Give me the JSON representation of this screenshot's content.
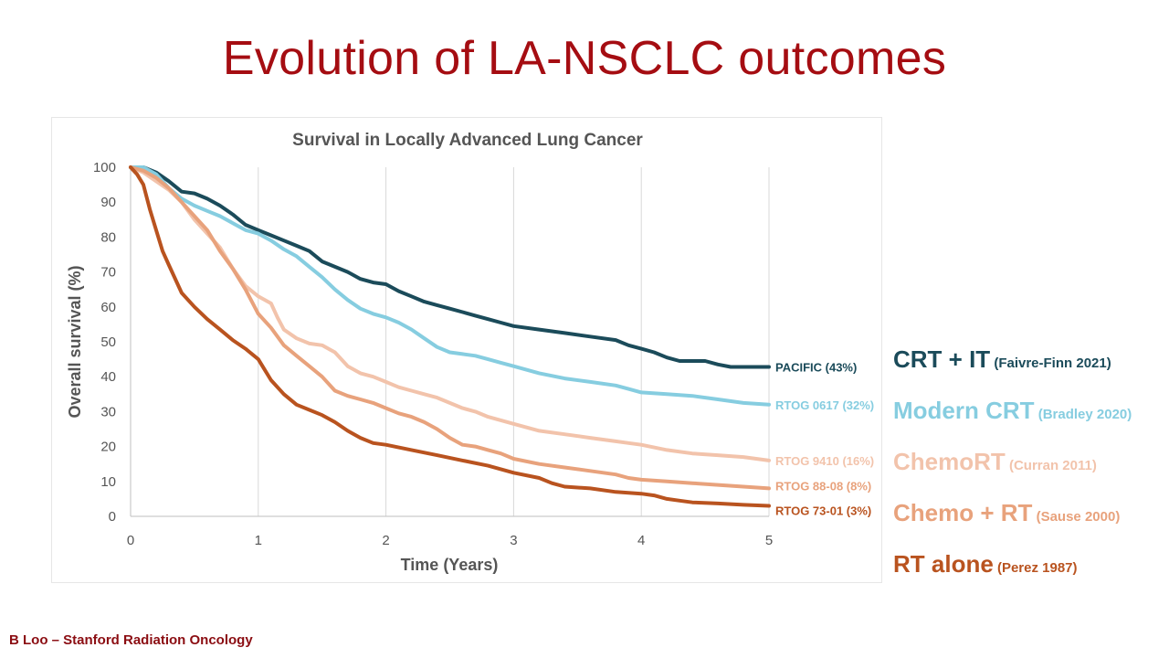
{
  "slide": {
    "title": "Evolution of LA-NSCLC outcomes",
    "footer": "B Loo – Stanford Radiation Oncology"
  },
  "legend_right": [
    {
      "label": "CRT + IT",
      "citation": "(Faivre-Finn 2021)",
      "color": "#1b4b5a"
    },
    {
      "label": "Modern CRT",
      "citation": "(Bradley 2020)",
      "color": "#86cde0"
    },
    {
      "label": "ChemoRT",
      "citation": "(Curran 2011)",
      "color": "#f2c3ab"
    },
    {
      "label": "Chemo + RT",
      "citation": "(Sause 2000)",
      "color": "#e8a27c"
    },
    {
      "label": "RT alone",
      "citation": "(Perez 1987)",
      "color": "#b9531f"
    }
  ],
  "chart_data": {
    "type": "line",
    "title": "Survival in Locally Advanced Lung Cancer",
    "xlabel": "Time (Years)",
    "ylabel": "Overall survival (%)",
    "xlim": [
      0,
      5
    ],
    "ylim": [
      0,
      100
    ],
    "xticks": [
      "0",
      "1",
      "2",
      "3",
      "4",
      "5"
    ],
    "yticks": [
      "0",
      "10",
      "20",
      "30",
      "40",
      "50",
      "60",
      "70",
      "80",
      "90",
      "100"
    ],
    "grid": "vertical",
    "series": [
      {
        "name": "PACIFIC (43%)",
        "color": "#1b4b5a",
        "points": [
          [
            0,
            100
          ],
          [
            0.1,
            100
          ],
          [
            0.2,
            98.5
          ],
          [
            0.3,
            96
          ],
          [
            0.4,
            93
          ],
          [
            0.5,
            92.5
          ],
          [
            0.6,
            91
          ],
          [
            0.7,
            89
          ],
          [
            0.8,
            86.5
          ],
          [
            0.9,
            83.5
          ],
          [
            1.0,
            82
          ],
          [
            1.1,
            80.5
          ],
          [
            1.2,
            79
          ],
          [
            1.3,
            77.5
          ],
          [
            1.4,
            76
          ],
          [
            1.5,
            73
          ],
          [
            1.6,
            71.5
          ],
          [
            1.7,
            70
          ],
          [
            1.8,
            68
          ],
          [
            1.9,
            67
          ],
          [
            2.0,
            66.5
          ],
          [
            2.1,
            64.5
          ],
          [
            2.2,
            63
          ],
          [
            2.3,
            61.5
          ],
          [
            2.4,
            60.5
          ],
          [
            2.5,
            59.5
          ],
          [
            2.6,
            58.5
          ],
          [
            2.7,
            57.5
          ],
          [
            2.8,
            56.5
          ],
          [
            2.9,
            55.5
          ],
          [
            3.0,
            54.5
          ],
          [
            3.2,
            53.5
          ],
          [
            3.4,
            52.5
          ],
          [
            3.6,
            51.5
          ],
          [
            3.8,
            50.5
          ],
          [
            3.9,
            49
          ],
          [
            4.0,
            48
          ],
          [
            4.1,
            47
          ],
          [
            4.2,
            45.5
          ],
          [
            4.3,
            44.5
          ],
          [
            4.5,
            44.5
          ],
          [
            4.6,
            43.5
          ],
          [
            4.7,
            42.8
          ],
          [
            5.0,
            42.8
          ]
        ]
      },
      {
        "name": "RTOG 0617 (32%)",
        "color": "#86cde0",
        "points": [
          [
            0,
            100
          ],
          [
            0.1,
            100
          ],
          [
            0.2,
            98
          ],
          [
            0.3,
            94
          ],
          [
            0.4,
            91
          ],
          [
            0.5,
            89
          ],
          [
            0.6,
            87.5
          ],
          [
            0.7,
            86
          ],
          [
            0.8,
            84
          ],
          [
            0.9,
            82
          ],
          [
            1.0,
            81
          ],
          [
            1.1,
            79
          ],
          [
            1.2,
            76.5
          ],
          [
            1.3,
            74.5
          ],
          [
            1.4,
            71.5
          ],
          [
            1.5,
            68.5
          ],
          [
            1.6,
            65
          ],
          [
            1.7,
            62
          ],
          [
            1.8,
            59.5
          ],
          [
            1.9,
            58
          ],
          [
            2.0,
            57
          ],
          [
            2.1,
            55.5
          ],
          [
            2.2,
            53.5
          ],
          [
            2.3,
            51
          ],
          [
            2.4,
            48.5
          ],
          [
            2.5,
            47
          ],
          [
            2.6,
            46.5
          ],
          [
            2.7,
            46
          ],
          [
            2.8,
            45
          ],
          [
            2.9,
            44
          ],
          [
            3.0,
            43
          ],
          [
            3.2,
            41
          ],
          [
            3.4,
            39.5
          ],
          [
            3.6,
            38.5
          ],
          [
            3.8,
            37.5
          ],
          [
            3.9,
            36.5
          ],
          [
            4.0,
            35.5
          ],
          [
            4.2,
            35
          ],
          [
            4.4,
            34.5
          ],
          [
            4.6,
            33.5
          ],
          [
            4.8,
            32.5
          ],
          [
            5.0,
            32
          ]
        ]
      },
      {
        "name": "RTOG 9410 (16%)",
        "color": "#f2c3ab",
        "points": [
          [
            0,
            100
          ],
          [
            0.1,
            98.5
          ],
          [
            0.2,
            96
          ],
          [
            0.3,
            93.5
          ],
          [
            0.4,
            90
          ],
          [
            0.5,
            85
          ],
          [
            0.6,
            81
          ],
          [
            0.7,
            77
          ],
          [
            0.8,
            71
          ],
          [
            0.9,
            66
          ],
          [
            1.0,
            63
          ],
          [
            1.1,
            61
          ],
          [
            1.15,
            57
          ],
          [
            1.2,
            53.5
          ],
          [
            1.3,
            51
          ],
          [
            1.4,
            49.5
          ],
          [
            1.5,
            49
          ],
          [
            1.6,
            47
          ],
          [
            1.7,
            43
          ],
          [
            1.8,
            41
          ],
          [
            1.9,
            40
          ],
          [
            2.0,
            38.5
          ],
          [
            2.1,
            37
          ],
          [
            2.2,
            36
          ],
          [
            2.3,
            35
          ],
          [
            2.4,
            34
          ],
          [
            2.5,
            32.5
          ],
          [
            2.6,
            31
          ],
          [
            2.7,
            30
          ],
          [
            2.8,
            28.5
          ],
          [
            2.9,
            27.5
          ],
          [
            3.0,
            26.5
          ],
          [
            3.2,
            24.5
          ],
          [
            3.4,
            23.5
          ],
          [
            3.6,
            22.5
          ],
          [
            3.8,
            21.5
          ],
          [
            3.9,
            21
          ],
          [
            4.0,
            20.5
          ],
          [
            4.2,
            19
          ],
          [
            4.4,
            18
          ],
          [
            4.6,
            17.5
          ],
          [
            4.8,
            17
          ],
          [
            5.0,
            16
          ]
        ]
      },
      {
        "name": "RTOG 88-08 (8%)",
        "color": "#e8a27c",
        "points": [
          [
            0,
            100
          ],
          [
            0.1,
            99
          ],
          [
            0.2,
            97
          ],
          [
            0.3,
            94
          ],
          [
            0.4,
            90
          ],
          [
            0.5,
            86
          ],
          [
            0.6,
            82
          ],
          [
            0.7,
            76
          ],
          [
            0.8,
            71
          ],
          [
            0.9,
            65
          ],
          [
            1.0,
            58
          ],
          [
            1.1,
            54
          ],
          [
            1.2,
            49
          ],
          [
            1.3,
            46
          ],
          [
            1.4,
            43
          ],
          [
            1.5,
            40
          ],
          [
            1.6,
            36
          ],
          [
            1.7,
            34.5
          ],
          [
            1.8,
            33.5
          ],
          [
            1.9,
            32.5
          ],
          [
            2.0,
            31
          ],
          [
            2.1,
            29.5
          ],
          [
            2.2,
            28.5
          ],
          [
            2.3,
            27
          ],
          [
            2.4,
            25
          ],
          [
            2.5,
            22.5
          ],
          [
            2.6,
            20.5
          ],
          [
            2.7,
            20
          ],
          [
            2.8,
            19
          ],
          [
            2.9,
            18
          ],
          [
            3.0,
            16.5
          ],
          [
            3.2,
            15
          ],
          [
            3.4,
            14
          ],
          [
            3.6,
            13
          ],
          [
            3.8,
            12
          ],
          [
            3.9,
            11
          ],
          [
            4.0,
            10.5
          ],
          [
            4.2,
            10
          ],
          [
            4.4,
            9.5
          ],
          [
            4.6,
            9
          ],
          [
            4.8,
            8.5
          ],
          [
            5.0,
            8
          ]
        ]
      },
      {
        "name": "RTOG 73-01 (3%)",
        "color": "#b9531f",
        "points": [
          [
            0,
            100
          ],
          [
            0.05,
            98
          ],
          [
            0.1,
            95
          ],
          [
            0.15,
            88
          ],
          [
            0.2,
            82
          ],
          [
            0.25,
            76
          ],
          [
            0.3,
            72
          ],
          [
            0.4,
            64
          ],
          [
            0.5,
            60
          ],
          [
            0.6,
            56.5
          ],
          [
            0.7,
            53.5
          ],
          [
            0.8,
            50.5
          ],
          [
            0.9,
            48
          ],
          [
            1.0,
            45
          ],
          [
            1.05,
            42
          ],
          [
            1.1,
            39
          ],
          [
            1.2,
            35
          ],
          [
            1.3,
            32
          ],
          [
            1.4,
            30.5
          ],
          [
            1.5,
            29
          ],
          [
            1.6,
            27
          ],
          [
            1.7,
            24.5
          ],
          [
            1.8,
            22.5
          ],
          [
            1.9,
            21
          ],
          [
            2.0,
            20.5
          ],
          [
            2.2,
            19
          ],
          [
            2.4,
            17.5
          ],
          [
            2.6,
            16
          ],
          [
            2.8,
            14.5
          ],
          [
            2.9,
            13.5
          ],
          [
            3.0,
            12.5
          ],
          [
            3.2,
            11
          ],
          [
            3.3,
            9.5
          ],
          [
            3.4,
            8.5
          ],
          [
            3.6,
            8
          ],
          [
            3.8,
            7
          ],
          [
            4.0,
            6.5
          ],
          [
            4.1,
            6
          ],
          [
            4.2,
            5
          ],
          [
            4.3,
            4.5
          ],
          [
            4.4,
            4
          ],
          [
            4.6,
            3.7
          ],
          [
            4.8,
            3.3
          ],
          [
            5.0,
            3
          ]
        ]
      }
    ]
  }
}
